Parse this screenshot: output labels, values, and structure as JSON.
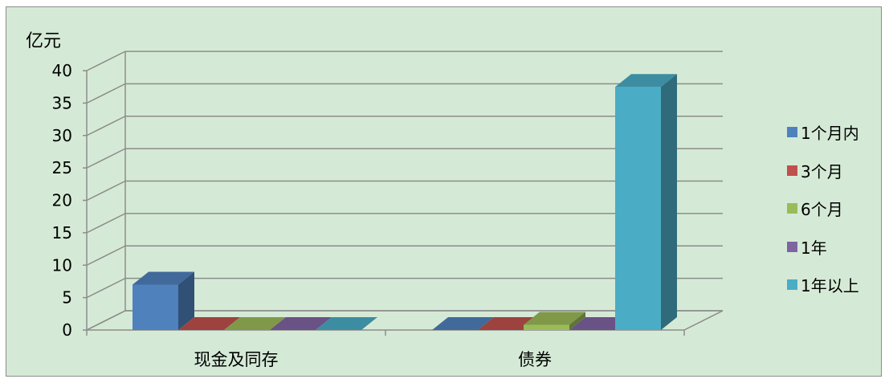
{
  "chart_data": {
    "type": "bar",
    "title": "",
    "xlabel": "",
    "ylabel": "亿元",
    "categories": [
      "现金及同存",
      "债券"
    ],
    "series": [
      {
        "name": "1个月内",
        "color": "#4f81bd",
        "values": [
          7,
          0
        ]
      },
      {
        "name": "3个月",
        "color": "#c0504d",
        "values": [
          0,
          0
        ]
      },
      {
        "name": "6个月",
        "color": "#9bbb59",
        "values": [
          0,
          0.8
        ]
      },
      {
        "name": "1年",
        "color": "#8064a2",
        "values": [
          0,
          0
        ]
      },
      {
        "name": "1年以上",
        "color": "#4bacc6",
        "values": [
          0,
          37.5
        ]
      }
    ],
    "ylim": [
      0,
      40
    ],
    "yticks": [
      "0",
      "5",
      "10",
      "15",
      "20",
      "25",
      "30",
      "35",
      "40"
    ],
    "grid": true,
    "legend_position": "right"
  }
}
